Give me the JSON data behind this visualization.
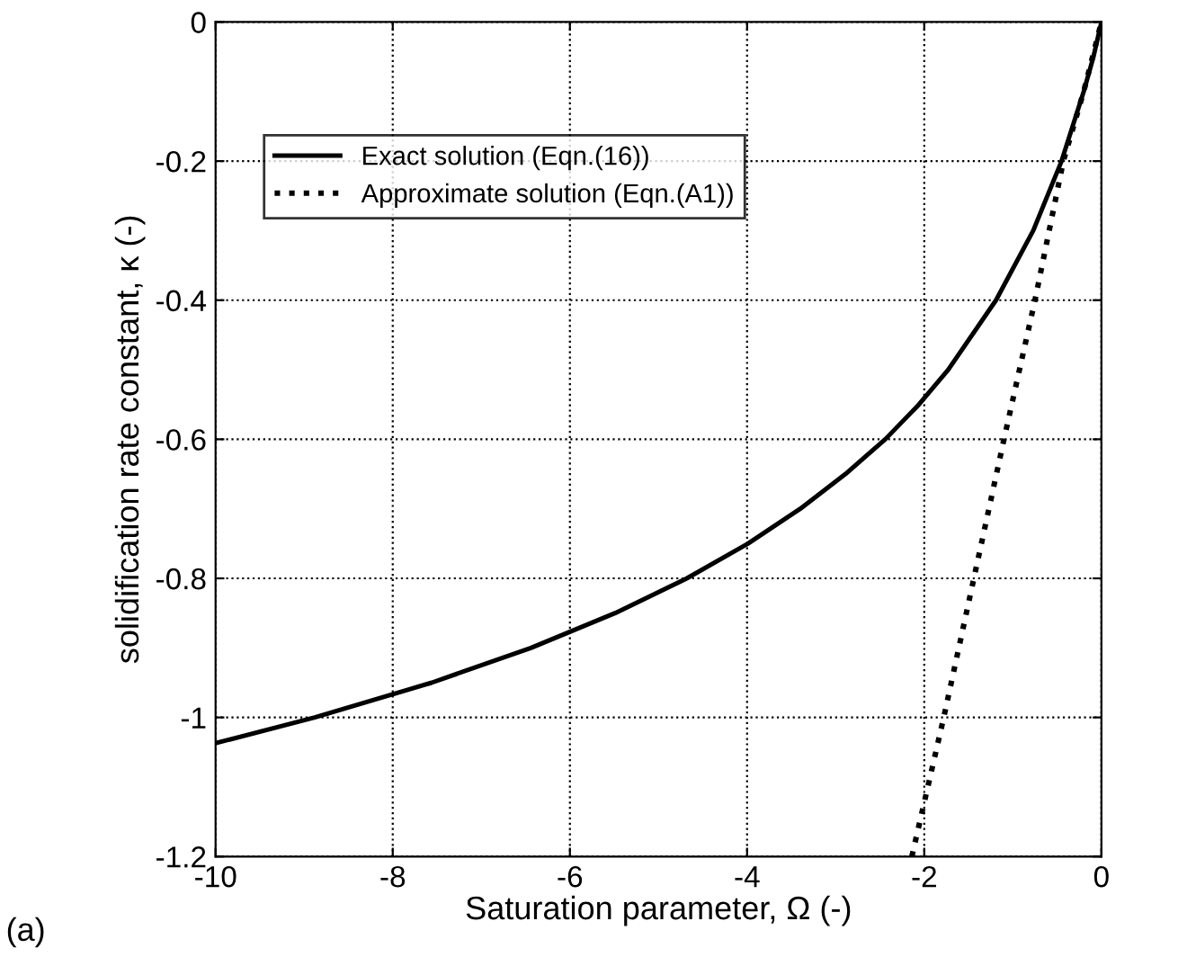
{
  "chart_data": {
    "type": "line",
    "xlabel": "Saturation parameter, Ω (-)",
    "ylabel": "solidification rate constant, κ (-)",
    "annotations": [
      "(a)"
    ],
    "series": [
      {
        "name": "Exact solution (Eqn.(16))",
        "color": "#000000",
        "line_style": "solid",
        "x": [
          -10.0,
          -8.88,
          -7.56,
          -6.44,
          -5.49,
          -4.68,
          -3.99,
          -3.4,
          -2.89,
          -2.44,
          -2.06,
          -1.73,
          -1.19,
          -0.77,
          -0.45,
          -0.2,
          -0.09,
          0
        ],
        "values": [
          -1.037,
          -1.0,
          -0.95,
          -0.9,
          -0.85,
          -0.8,
          -0.75,
          -0.7,
          -0.65,
          -0.6,
          -0.55,
          -0.5,
          -0.4,
          -0.3,
          -0.2,
          -0.1,
          -0.05,
          0
        ]
      },
      {
        "name": "Approximate solution (Eqn.(A1))",
        "color": "#000000",
        "line_style": "dotted",
        "x": [
          -2.14,
          -1.78,
          -1.44,
          -1.1,
          -0.75,
          -0.43,
          -0.2,
          0
        ],
        "values": [
          -1.2,
          -1.0,
          -0.8,
          -0.6,
          -0.4,
          -0.2,
          -0.1,
          0
        ]
      }
    ],
    "xlim": [
      -10,
      0
    ],
    "xticks": [
      -10,
      -8,
      -6,
      -4,
      -2,
      0
    ],
    "ylim": [
      -1.2,
      0
    ],
    "yticks": [
      -1.2,
      -1,
      -0.8,
      -0.6,
      -0.4,
      -0.2,
      0
    ],
    "grid": true,
    "legend": "top left"
  }
}
